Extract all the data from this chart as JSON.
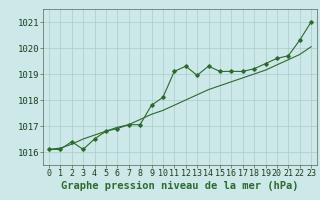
{
  "x": [
    0,
    1,
    2,
    3,
    4,
    5,
    6,
    7,
    8,
    9,
    10,
    11,
    12,
    13,
    14,
    15,
    16,
    17,
    18,
    19,
    20,
    21,
    22,
    23
  ],
  "y_main": [
    1016.1,
    1016.1,
    1016.4,
    1016.1,
    1016.5,
    1016.8,
    1016.9,
    1017.05,
    1017.05,
    1017.8,
    1018.1,
    1019.1,
    1019.3,
    1018.95,
    1019.3,
    1019.1,
    1019.1,
    1019.1,
    1019.2,
    1019.4,
    1019.6,
    1019.7,
    1020.3,
    1021.0
  ],
  "y_trend": [
    1016.1,
    1016.15,
    1016.3,
    1016.5,
    1016.65,
    1016.8,
    1016.95,
    1017.05,
    1017.25,
    1017.45,
    1017.6,
    1017.8,
    1018.0,
    1018.2,
    1018.4,
    1018.55,
    1018.7,
    1018.85,
    1019.0,
    1019.15,
    1019.35,
    1019.55,
    1019.75,
    1020.05
  ],
  "line_color": "#2d6a2d",
  "bg_color": "#cce8e8",
  "plot_bg_color": "#cce8e8",
  "grid_color": "#aacccc",
  "xlabel": "Graphe pression niveau de la mer (hPa)",
  "ylim": [
    1015.5,
    1021.5
  ],
  "yticks": [
    1016,
    1017,
    1018,
    1019,
    1020,
    1021
  ],
  "xlim": [
    -0.5,
    23.5
  ],
  "xlabel_fontsize": 7.5,
  "tick_fontsize": 6.5
}
